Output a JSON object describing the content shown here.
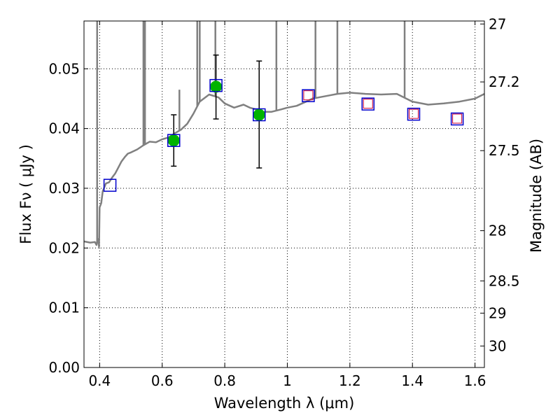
{
  "chart_data": {
    "type": "scatter",
    "title": "",
    "xlabel": "Wavelength  λ (μm)",
    "ylabel": "Flux  Fν  ( μJy )",
    "y2label": "Magnitude (AB)",
    "xlim": [
      0.35,
      1.63
    ],
    "ylim": [
      0.0,
      0.058
    ],
    "grid": true,
    "x_ticks": [
      0.4,
      0.6,
      0.8,
      1.0,
      1.2,
      1.4,
      1.6
    ],
    "x_tick_labels": [
      "0.4",
      "0.6",
      "0.8",
      "1",
      "1.2",
      "1.4",
      "1.6"
    ],
    "y_ticks": [
      0.0,
      0.01,
      0.02,
      0.03,
      0.04,
      0.05
    ],
    "y_tick_labels": [
      "0.00",
      "0.01",
      "0.02",
      "0.03",
      "0.04",
      "0.05"
    ],
    "y2_ticks": [
      {
        "label": "27",
        "flux": 0.0575
      },
      {
        "label": "27.2",
        "flux": 0.0478
      },
      {
        "label": "27.5",
        "flux": 0.0363
      },
      {
        "label": "28",
        "flux": 0.0229
      },
      {
        "label": "28.5",
        "flux": 0.0145
      },
      {
        "label": "29",
        "flux": 0.0091
      },
      {
        "label": "30",
        "flux": 0.0036
      }
    ],
    "series": [
      {
        "kind": "model_spectrum",
        "color": "#808080",
        "x": [
          0.35,
          0.37,
          0.385,
          0.39,
          0.392,
          0.395,
          0.398,
          0.4,
          0.405,
          0.41,
          0.42,
          0.43,
          0.44,
          0.45,
          0.46,
          0.47,
          0.48,
          0.49,
          0.5,
          0.52,
          0.54,
          0.56,
          0.58,
          0.6,
          0.62,
          0.64,
          0.66,
          0.68,
          0.7,
          0.72,
          0.75,
          0.78,
          0.8,
          0.83,
          0.86,
          0.88,
          0.9,
          0.92,
          0.95,
          0.98,
          1.0,
          1.03,
          1.06,
          1.08,
          1.1,
          1.13,
          1.16,
          1.2,
          1.25,
          1.3,
          1.35,
          1.4,
          1.45,
          1.5,
          1.55,
          1.6,
          1.63
        ],
        "y": [
          0.0211,
          0.0209,
          0.021,
          0.0205,
          0.0212,
          0.0215,
          0.0202,
          0.0268,
          0.0275,
          0.0295,
          0.0308,
          0.031,
          0.0318,
          0.0325,
          0.0335,
          0.0345,
          0.0352,
          0.0358,
          0.036,
          0.0365,
          0.0372,
          0.0378,
          0.0377,
          0.0382,
          0.0385,
          0.0392,
          0.0398,
          0.0408,
          0.0425,
          0.0445,
          0.0457,
          0.0452,
          0.0442,
          0.0435,
          0.044,
          0.0435,
          0.0432,
          0.0428,
          0.0428,
          0.0432,
          0.0435,
          0.0438,
          0.0445,
          0.045,
          0.0452,
          0.0455,
          0.0458,
          0.046,
          0.0458,
          0.0457,
          0.0458,
          0.0445,
          0.044,
          0.0442,
          0.0445,
          0.045,
          0.0458
        ]
      },
      {
        "kind": "emission_lines",
        "color": "#808080",
        "x": [
          0.392,
          0.54,
          0.545,
          0.655,
          0.712,
          0.72,
          0.77,
          0.965,
          1.09,
          1.16,
          1.375
        ],
        "peak": [
          0.058,
          0.058,
          0.058,
          0.0465,
          0.058,
          0.058,
          0.058,
          0.058,
          0.058,
          0.058,
          0.058
        ]
      },
      {
        "kind": "detections",
        "marker": "circle",
        "color": "#00b300",
        "x": [
          0.637,
          0.772,
          0.91
        ],
        "y": [
          0.038,
          0.047,
          0.0423
        ],
        "err_low": [
          0.0337,
          0.0416,
          0.0334
        ],
        "err_high": [
          0.0423,
          0.0523,
          0.0513
        ]
      },
      {
        "kind": "model_photometry",
        "marker": "square",
        "color": "#0000cc",
        "x": [
          0.433,
          0.637,
          0.772,
          0.91,
          1.067,
          1.258,
          1.404,
          1.543
        ],
        "y": [
          0.0305,
          0.038,
          0.0472,
          0.0423,
          0.0455,
          0.0441,
          0.0424,
          0.0416
        ]
      },
      {
        "kind": "upper_limits",
        "marker": "square",
        "color": "#cc0033",
        "x": [
          1.067,
          1.258,
          1.404,
          1.543
        ],
        "y": [
          0.0455,
          0.0441,
          0.0424,
          0.0416
        ]
      }
    ]
  }
}
